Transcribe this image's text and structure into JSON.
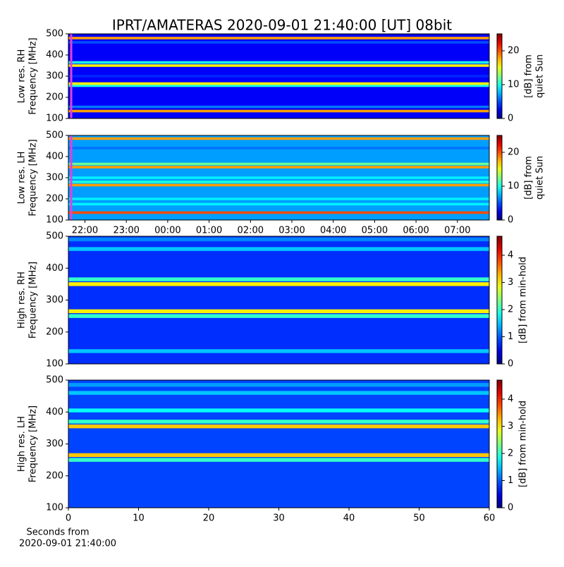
{
  "chart_data": [
    {
      "type": "heatmap",
      "title": "IPRT/AMATERAS 2020-09-01 21:40:00 [UT]   08bit",
      "ylabel": [
        "Low res. RH",
        "Frequency [MHz]"
      ],
      "colorbar_label": [
        "[dB] from",
        "quiet Sun"
      ],
      "xlim": [
        21.6,
        31.77
      ],
      "ylim": [
        100,
        500
      ],
      "yticks": [
        100,
        200,
        300,
        400,
        500
      ],
      "clim": [
        0,
        25
      ],
      "cticks": [
        0,
        10,
        20
      ],
      "colormap": "jet",
      "background": 3,
      "y": [
        135,
        155,
        200,
        255,
        265,
        300,
        350,
        365,
        420,
        460,
        480
      ],
      "values": [
        18,
        6,
        3,
        10,
        16,
        4,
        16,
        10,
        3,
        5,
        18
      ]
    },
    {
      "type": "heatmap",
      "ylabel": [
        "Low res. LH",
        "Frequency [MHz]"
      ],
      "colorbar_label": [
        "[dB] from",
        "quiet Sun"
      ],
      "xlim": [
        21.6,
        31.77
      ],
      "ylim": [
        100,
        500
      ],
      "yticks": [
        100,
        200,
        300,
        400,
        500
      ],
      "xticks": [
        {
          "value": 22,
          "label": "22:00"
        },
        {
          "value": 23,
          "label": "23:00"
        },
        {
          "value": 24,
          "label": "00:00"
        },
        {
          "value": 25,
          "label": "01:00"
        },
        {
          "value": 26,
          "label": "02:00"
        },
        {
          "value": 27,
          "label": "03:00"
        },
        {
          "value": 28,
          "label": "04:00"
        },
        {
          "value": 29,
          "label": "05:00"
        },
        {
          "value": 30,
          "label": "06:00"
        },
        {
          "value": 31,
          "label": "07:00"
        }
      ],
      "clim": [
        0,
        25
      ],
      "cticks": [
        0,
        10,
        20
      ],
      "colormap": "jet",
      "background": 7,
      "y": [
        135,
        175,
        200,
        265,
        280,
        300,
        350,
        365,
        440,
        485
      ],
      "values": [
        20,
        9,
        9,
        18,
        10,
        9,
        18,
        12,
        6,
        18
      ]
    },
    {
      "type": "heatmap",
      "ylabel": [
        "High res. RH",
        "Frequency [MHz]"
      ],
      "colorbar_label": [
        "[dB] from min-hold"
      ],
      "xlim": [
        0,
        60
      ],
      "ylim": [
        100,
        500
      ],
      "yticks": [
        100,
        200,
        300,
        400,
        500
      ],
      "clim": [
        0,
        4.7
      ],
      "cticks": [
        0,
        1,
        2,
        3,
        4
      ],
      "colormap": "jet",
      "background": 0.8,
      "y": [
        140,
        250,
        265,
        350,
        365,
        460,
        490
      ],
      "values": [
        1.5,
        2,
        3,
        3,
        2,
        1.5,
        1.2
      ]
    },
    {
      "type": "heatmap",
      "ylabel": [
        "High res. LH",
        "Frequency [MHz]"
      ],
      "colorbar_label": [
        "[dB] from min-hold"
      ],
      "xlabel": [
        "Seconds from",
        "2020-09-01 21:40:00"
      ],
      "xlim": [
        0,
        60
      ],
      "ylim": [
        100,
        500
      ],
      "yticks": [
        100,
        200,
        300,
        400,
        500
      ],
      "xticks": [
        0,
        10,
        20,
        30,
        40,
        50,
        60
      ],
      "clim": [
        0,
        4.7
      ],
      "cticks": [
        0,
        1,
        2,
        3,
        4
      ],
      "colormap": "jet",
      "background": 0.9,
      "y": [
        250,
        265,
        355,
        370,
        405,
        460,
        485
      ],
      "values": [
        2,
        3.2,
        3.2,
        2,
        1.8,
        1.5,
        1.3
      ]
    }
  ]
}
